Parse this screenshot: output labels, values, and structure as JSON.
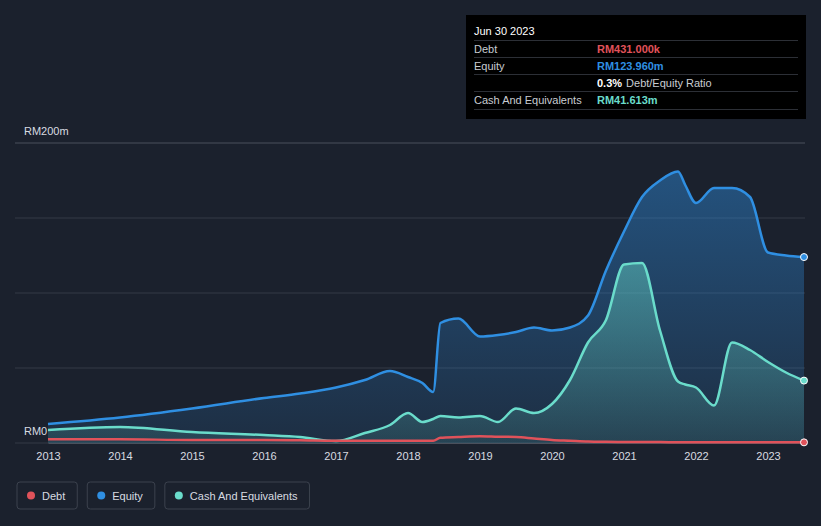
{
  "chart_data": {
    "type": "area",
    "x": [
      2013,
      2014,
      2015,
      2016,
      2016.5,
      2017,
      2017.4,
      2017.75,
      2018,
      2018.2,
      2018.35,
      2018.45,
      2018.7,
      2019,
      2019.25,
      2019.5,
      2019.75,
      2020,
      2020.25,
      2020.5,
      2020.75,
      2021,
      2021.25,
      2021.5,
      2021.75,
      2021.85,
      2022,
      2022.25,
      2022.5,
      2022.75,
      2023,
      2023.25,
      2023.5
    ],
    "series": [
      {
        "name": "Debt",
        "color": "#e0525a",
        "type": "line",
        "values": [
          2.5,
          2.5,
          2,
          2,
          1.8,
          1.5,
          1.5,
          1.5,
          1.5,
          1.5,
          1.5,
          3.5,
          4,
          4.5,
          4.2,
          4,
          3,
          2,
          1.5,
          1,
          0.8,
          0.7,
          0.6,
          0.6,
          0.5,
          0.5,
          0.5,
          0.5,
          0.5,
          0.5,
          0.5,
          0.45,
          0.431
        ]
      },
      {
        "name": "Equity",
        "color": "#2f8fe2",
        "type": "area",
        "values": [
          12.7,
          17,
          23,
          30,
          33,
          37,
          42,
          48,
          44,
          40,
          34,
          80,
          83,
          71,
          72,
          74,
          77,
          75,
          77,
          85,
          115,
          141,
          164,
          175,
          181,
          172,
          160,
          170,
          170,
          164,
          127,
          125,
          123.96
        ]
      },
      {
        "name": "Cash And Equivalents",
        "color": "#6adccb",
        "type": "area",
        "values": [
          8.7,
          10.7,
          7.3,
          5.3,
          4,
          1.3,
          6.7,
          12,
          20,
          14,
          16,
          18,
          17,
          18,
          14,
          23,
          20,
          26,
          42,
          67,
          82,
          119,
          120,
          75,
          41,
          39,
          37,
          25,
          67,
          62,
          54,
          47,
          41.613
        ]
      }
    ],
    "xlim": [
      2013,
      2023.5
    ],
    "xticks": [
      2013,
      2014,
      2015,
      2016,
      2017,
      2018,
      2019,
      2020,
      2021,
      2022,
      2023
    ],
    "ylim": [
      0,
      200
    ],
    "yticks": [
      {
        "value": 0,
        "label": "RM0"
      },
      {
        "value": 50,
        "label": null
      },
      {
        "value": 100,
        "label": null
      },
      {
        "value": 150,
        "label": null
      },
      {
        "value": 200,
        "label": "RM200m"
      }
    ],
    "grid": true,
    "legend": "bottom",
    "tooltip": {
      "date": "Jun 30 2023",
      "rows": [
        {
          "label": "Debt",
          "value": "RM431.000k"
        },
        {
          "label": "Equity",
          "value": "RM123.960m"
        },
        {
          "value": "0.3%",
          "label": "Debt/Equity Ratio"
        },
        {
          "label": "Cash And Equivalents",
          "value": "RM41.613m"
        }
      ]
    }
  }
}
